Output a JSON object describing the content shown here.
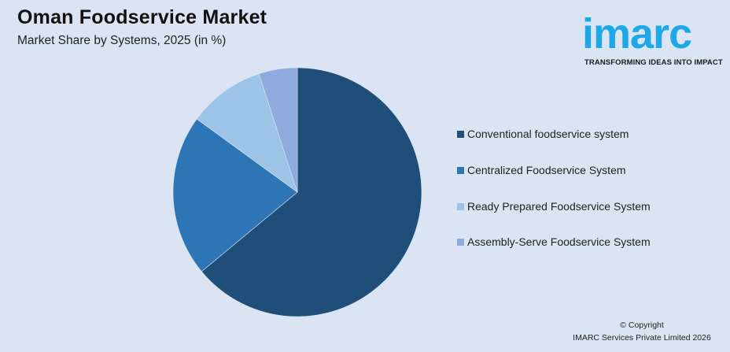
{
  "header": {
    "title": "Oman Foodservice Market",
    "subtitle": "Market Share by Systems, 2025 (in %)"
  },
  "logo": {
    "wordmark": "imarc",
    "tagline": "TRANSFORMING IDEAS INTO IMPACT",
    "color": "#1ea8e8"
  },
  "chart_data": {
    "type": "pie",
    "title": "Oman Foodservice Market",
    "subtitle": "Market Share by Systems, 2025 (in %)",
    "categories": [
      "Conventional foodservice system",
      "Centralized Foodservice System",
      "Ready Prepared Foodservice System",
      "Assembly-Serve Foodservice System"
    ],
    "values": [
      64,
      21,
      10,
      5
    ],
    "colors": [
      "#1f4e79",
      "#2e75b6",
      "#9dc3e6",
      "#8faadc"
    ],
    "start_angle": "12 o'clock",
    "direction": "clockwise",
    "legend_position": "right",
    "data_labels": false
  },
  "legend": {
    "items": [
      {
        "label": "Conventional foodservice system",
        "color": "#1f4e79"
      },
      {
        "label": "Centralized Foodservice System",
        "color": "#2e75b6"
      },
      {
        "label": "Ready Prepared Foodservice System",
        "color": "#9dc3e6"
      },
      {
        "label": "Assembly-Serve Foodservice System",
        "color": "#8faadc"
      }
    ]
  },
  "footer": {
    "copyright_line1": "© Copyright",
    "copyright_line2": "IMARC Services Private Limited 2026"
  }
}
